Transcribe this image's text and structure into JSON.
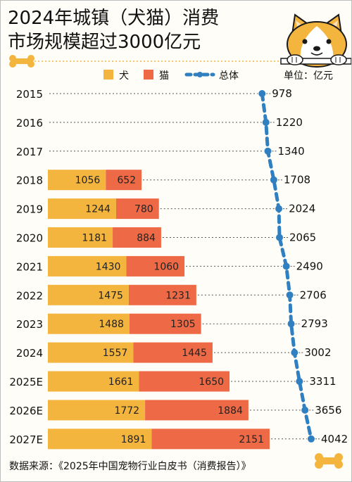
{
  "title_lines": [
    "2024年城镇（犬猫）消费",
    "市场规模超过3000亿元"
  ],
  "legend": {
    "dog": "犬",
    "cat": "猫",
    "total": "总体"
  },
  "unit_label": "单位：亿元",
  "source": "数据来源：《2025年中国宠物行业白皮书（消费报告）》",
  "colors": {
    "dog": "#f4b53f",
    "cat": "#ee6a46",
    "total": "#2f7fc1",
    "dog_face": "#f4b53f"
  },
  "chart_data": {
    "type": "bar",
    "stacked": true,
    "orientation": "horizontal",
    "categories": [
      "2015",
      "2016",
      "2017",
      "2018",
      "2019",
      "2020",
      "2021",
      "2022",
      "2023",
      "2024",
      "2025E",
      "2026E",
      "2027E"
    ],
    "series": [
      {
        "name": "犬",
        "values": [
          null,
          null,
          null,
          1056,
          1244,
          1181,
          1430,
          1475,
          1488,
          1557,
          1661,
          1772,
          1891
        ]
      },
      {
        "name": "猫",
        "values": [
          null,
          null,
          null,
          652,
          780,
          884,
          1060,
          1231,
          1305,
          1445,
          1650,
          1884,
          2151
        ]
      }
    ],
    "line_series": {
      "name": "总体",
      "values": [
        978,
        1220,
        1340,
        1708,
        2024,
        2065,
        2490,
        2706,
        2793,
        3002,
        3311,
        3656,
        4042
      ]
    },
    "unit": "亿元"
  }
}
